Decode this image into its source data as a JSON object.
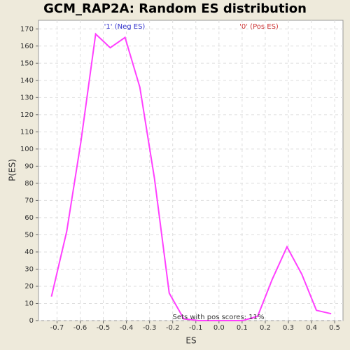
{
  "chart_data": {
    "type": "line",
    "title": "GCM_RAP2A: Random ES distribution",
    "xlabel": "ES",
    "ylabel": "P(ES)",
    "annotations": [
      "'1' (Neg ES)",
      "'0' (Pos ES)",
      "Sets with pos scores: 11%"
    ],
    "annotation_colors": [
      "#3333cc",
      "#cc3333",
      "#333333"
    ],
    "x": [
      -0.724,
      -0.658,
      -0.597,
      -0.533,
      -0.47,
      -0.406,
      -0.342,
      -0.279,
      -0.215,
      -0.152,
      -0.088,
      -0.024,
      0.039,
      0.103,
      0.167,
      0.23,
      0.294,
      0.358,
      0.421,
      0.485
    ],
    "series": [
      {
        "name": "P(ES)",
        "color": "#ff40ff",
        "values": [
          14,
          52,
          104,
          167,
          159,
          165,
          136,
          83,
          16,
          1,
          0,
          0,
          0,
          0,
          2.5,
          24,
          43,
          27,
          6,
          4
        ]
      }
    ],
    "xlim": [
      -0.78,
      0.536
    ],
    "ylim": [
      0,
      175
    ],
    "xticks": [
      {
        "value": -0.7,
        "label": "-0.7"
      },
      {
        "value": -0.6,
        "label": "-0.6"
      },
      {
        "value": -0.5,
        "label": "-0.5"
      },
      {
        "value": -0.4,
        "label": "-0.4"
      },
      {
        "value": -0.3,
        "label": "-0.3"
      },
      {
        "value": -0.2,
        "label": "-0.2"
      },
      {
        "value": -0.1,
        "label": "-0.1"
      },
      {
        "value": 0,
        "label": "0.0"
      },
      {
        "value": 0.1,
        "label": "0.1"
      },
      {
        "value": 0.2,
        "label": "0.2"
      },
      {
        "value": 0.3,
        "label": "0.3"
      },
      {
        "value": 0.4,
        "label": "0.4"
      },
      {
        "value": 0.5,
        "label": "0.5"
      }
    ],
    "yticks": [
      0,
      10,
      20,
      30,
      40,
      50,
      60,
      70,
      80,
      90,
      100,
      110,
      120,
      130,
      140,
      150,
      160,
      170
    ],
    "grid": true
  }
}
